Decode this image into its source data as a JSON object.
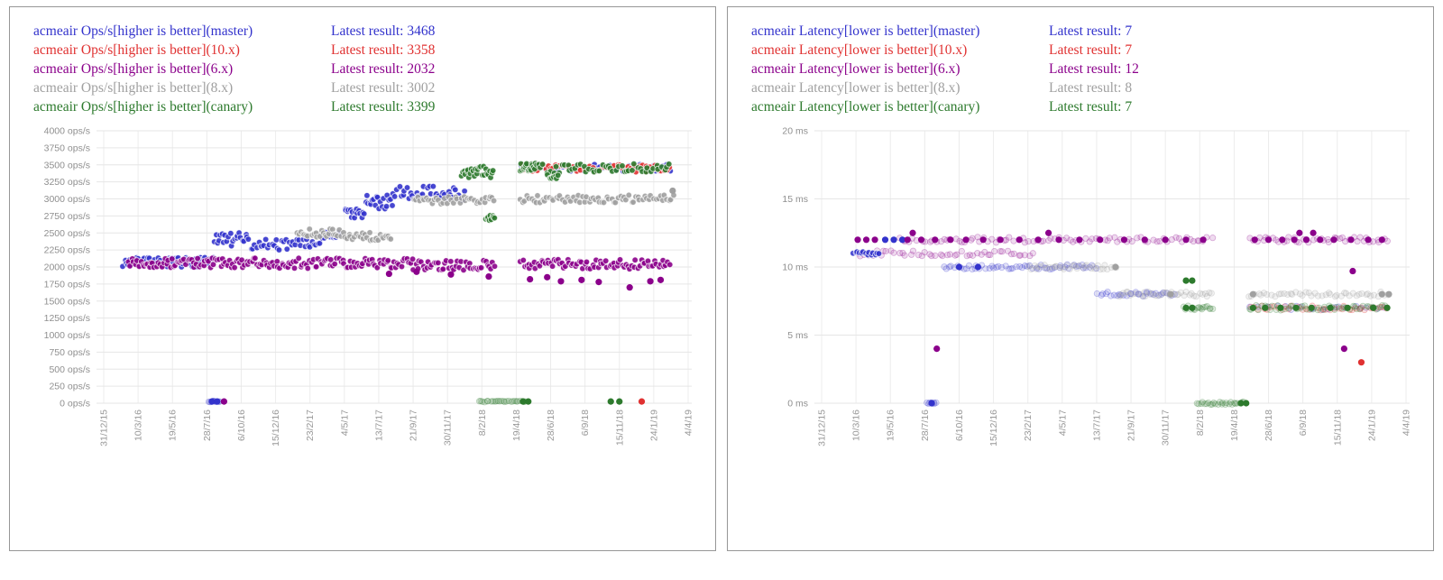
{
  "charts": [
    {
      "panel_name": "ops",
      "legend": [
        {
          "label": "acmeair Ops/s[higher is better](master)",
          "latest": "Latest result: 3468",
          "color": "#3333cc"
        },
        {
          "label": "acmeair Ops/s[higher is better](10.x)",
          "latest": "Latest result: 3358",
          "color": "#e03131"
        },
        {
          "label": "acmeair Ops/s[higher is better](6.x)",
          "latest": "Latest result: 2032",
          "color": "#8b008b"
        },
        {
          "label": "acmeair Ops/s[higher is better](8.x)",
          "latest": "Latest result: 3002",
          "color": "#a0a0a0"
        },
        {
          "label": "acmeair Ops/s[higher is better](canary)",
          "latest": "Latest result: 3399",
          "color": "#2d7a2d"
        }
      ],
      "chart_data": {
        "type": "scatter",
        "title": "acmeair Ops/s [higher is better]",
        "xlabel": "",
        "ylabel": "ops/s",
        "y_unit": " ops/s",
        "ylim": [
          0,
          4000
        ],
        "ytick_step": 250,
        "grid": true,
        "legend_position": "top-left",
        "x_tick_labels": [
          "31/12/15",
          "10/3/16",
          "19/5/16",
          "28/7/16",
          "6/10/16",
          "15/12/16",
          "23/2/17",
          "4/5/17",
          "13/7/17",
          "21/9/17",
          "30/11/17",
          "8/2/18",
          "19/4/18",
          "28/6/18",
          "6/9/18",
          "15/11/18",
          "24/1/19",
          "4/4/19"
        ],
        "x_unit": "tick index (70-day intervals between labeled dates)",
        "series": [
          {
            "name": "master",
            "color": "#3333cc",
            "latest": 3468,
            "segments": [
              [
                0.55,
                3.2,
                2070,
                70,
                60,
                "solid"
              ],
              [
                3.2,
                4.2,
                2400,
                110,
                22,
                "solid"
              ],
              [
                4.2,
                6.2,
                2330,
                80,
                36,
                "solid"
              ],
              [
                6.2,
                6.9,
                2430,
                90,
                14,
                "solid"
              ],
              [
                7.0,
                7.6,
                2790,
                70,
                16,
                "solid"
              ],
              [
                7.6,
                8.4,
                2960,
                110,
                20,
                "solid"
              ],
              [
                8.4,
                10.5,
                3090,
                110,
                38,
                "solid"
              ],
              [
                12.1,
                16.5,
                3460,
                55,
                46,
                "solid"
              ],
              [
                3.05,
                3.4,
                25,
                8,
                10,
                "pale"
              ]
            ],
            "points": [
              [
                3.15,
                25
              ],
              [
                3.3,
                25
              ]
            ]
          },
          {
            "name": "10.x",
            "color": "#e03131",
            "latest": 3358,
            "segments": [
              [
                12.1,
                16.5,
                3450,
                55,
                55,
                "solid"
              ]
            ],
            "points": [
              [
                15.65,
                25
              ]
            ]
          },
          {
            "name": "6.x",
            "color": "#8b008b",
            "latest": 2032,
            "segments": [
              [
                0.7,
                5.0,
                2060,
                70,
                85,
                "solid"
              ],
              [
                5.0,
                9.0,
                2055,
                75,
                75,
                "solid"
              ],
              [
                9.0,
                11.4,
                2030,
                75,
                45,
                "solid"
              ],
              [
                12.1,
                16.5,
                2040,
                70,
                80,
                "solid"
              ]
            ],
            "points": [
              [
                8.3,
                1900
              ],
              [
                9.1,
                1930
              ],
              [
                10.1,
                1890
              ],
              [
                11.2,
                1860
              ],
              [
                12.4,
                1820
              ],
              [
                12.9,
                1850
              ],
              [
                13.3,
                1790
              ],
              [
                13.9,
                1810
              ],
              [
                14.4,
                1780
              ],
              [
                15.3,
                1700
              ],
              [
                15.9,
                1790
              ],
              [
                16.2,
                1810
              ],
              [
                3.5,
                25
              ]
            ]
          },
          {
            "name": "8.x",
            "color": "#a0a0a0",
            "latest": 3002,
            "segments": [
              [
                5.6,
                7.0,
                2500,
                60,
                26,
                "solid"
              ],
              [
                7.0,
                8.4,
                2450,
                60,
                26,
                "solid"
              ],
              [
                9.0,
                11.4,
                2980,
                55,
                40,
                "solid"
              ],
              [
                12.1,
                16.6,
                3000,
                55,
                70,
                "solid"
              ]
            ],
            "points": [
              [
                16.55,
                3120
              ]
            ]
          },
          {
            "name": "canary",
            "color": "#2d7a2d",
            "latest": 3399,
            "segments": [
              [
                10.4,
                11.35,
                3390,
                90,
                26,
                "solid"
              ],
              [
                11.1,
                11.4,
                2720,
                40,
                9,
                "solid"
              ],
              [
                12.1,
                12.6,
                3480,
                70,
                18,
                "solid"
              ],
              [
                12.6,
                16.5,
                3445,
                70,
                50,
                "solid"
              ],
              [
                12.9,
                13.25,
                3310,
                50,
                8,
                "solid"
              ],
              [
                10.9,
                12.3,
                25,
                10,
                26,
                "pale"
              ]
            ],
            "points": [
              [
                12.2,
                25
              ],
              [
                12.35,
                25
              ],
              [
                14.75,
                25
              ],
              [
                15.0,
                25
              ]
            ]
          }
        ]
      }
    },
    {
      "panel_name": "latency",
      "legend": [
        {
          "label": "acmeair Latency[lower is better](master)",
          "latest": "Latest result: 7",
          "color": "#3333cc"
        },
        {
          "label": "acmeair Latency[lower is better](10.x)",
          "latest": "Latest result: 7",
          "color": "#e03131"
        },
        {
          "label": "acmeair Latency[lower is better](6.x)",
          "latest": "Latest result: 12",
          "color": "#8b008b"
        },
        {
          "label": "acmeair Latency[lower is better](8.x)",
          "latest": "Latest result: 8",
          "color": "#a0a0a0"
        },
        {
          "label": "acmeair Latency[lower is better](canary)",
          "latest": "Latest result: 7",
          "color": "#2d7a2d"
        }
      ],
      "chart_data": {
        "type": "scatter",
        "title": "acmeair Latency [lower is better]",
        "xlabel": "",
        "ylabel": "ms",
        "y_unit": " ms",
        "ylim": [
          0,
          20
        ],
        "ytick_step": 5,
        "grid": true,
        "legend_position": "top-left",
        "x_tick_labels": [
          "31/12/15",
          "10/3/16",
          "19/5/16",
          "28/7/16",
          "6/10/16",
          "15/12/16",
          "23/2/17",
          "4/5/17",
          "13/7/17",
          "21/9/17",
          "30/11/17",
          "8/2/18",
          "19/4/18",
          "28/6/18",
          "6/9/18",
          "15/11/18",
          "24/1/19",
          "4/4/19"
        ],
        "x_unit": "tick index (70-day intervals between labeled dates)",
        "series": [
          {
            "name": "master",
            "color": "#3333cc",
            "latest": 7,
            "segments": [
              [
                0.9,
                1.7,
                11,
                0.12,
                14,
                "solid"
              ],
              [
                3.5,
                8.0,
                10,
                0.18,
                55,
                "pale"
              ],
              [
                8.0,
                10.3,
                8,
                0.18,
                30,
                "pale"
              ],
              [
                12.4,
                16.5,
                7,
                0.15,
                22,
                "pale"
              ],
              [
                3.05,
                3.35,
                0,
                0.08,
                8,
                "pale"
              ]
            ],
            "points": [
              [
                1.85,
                12
              ],
              [
                2.1,
                12
              ],
              [
                2.35,
                12
              ],
              [
                4.0,
                10
              ],
              [
                4.55,
                10
              ],
              [
                3.2,
                0
              ]
            ]
          },
          {
            "name": "10.x",
            "color": "#e03131",
            "latest": 7,
            "segments": [
              [
                12.4,
                16.5,
                7,
                0.18,
                40,
                "pale"
              ]
            ],
            "points": [
              [
                15.7,
                3
              ]
            ]
          },
          {
            "name": "6.x",
            "color": "#8b008b",
            "latest": 12,
            "segments": [
              [
                2.2,
                11.4,
                12,
                0.2,
                85,
                "pale"
              ],
              [
                12.4,
                16.5,
                12,
                0.2,
                42,
                "pale"
              ],
              [
                1.0,
                6.2,
                11,
                0.2,
                48,
                "pale"
              ]
            ],
            "points": [
              [
                1.05,
                12
              ],
              [
                1.3,
                12
              ],
              [
                1.55,
                12
              ],
              [
                2.5,
                12
              ],
              [
                2.9,
                12
              ],
              [
                3.3,
                12
              ],
              [
                3.75,
                12
              ],
              [
                4.2,
                12
              ],
              [
                4.7,
                12
              ],
              [
                5.2,
                12
              ],
              [
                5.75,
                12
              ],
              [
                6.3,
                12
              ],
              [
                6.9,
                12
              ],
              [
                7.5,
                12
              ],
              [
                8.1,
                12
              ],
              [
                8.8,
                12
              ],
              [
                9.4,
                12
              ],
              [
                10.0,
                12
              ],
              [
                10.6,
                12
              ],
              [
                11.1,
                12
              ],
              [
                12.6,
                12
              ],
              [
                13.0,
                12
              ],
              [
                13.4,
                12
              ],
              [
                13.75,
                12
              ],
              [
                14.1,
                12
              ],
              [
                14.5,
                12
              ],
              [
                14.9,
                12
              ],
              [
                15.4,
                12
              ],
              [
                15.9,
                12
              ],
              [
                16.3,
                12
              ],
              [
                3.35,
                4
              ],
              [
                15.2,
                4
              ],
              [
                15.45,
                9.7
              ],
              [
                2.65,
                12.5
              ],
              [
                6.6,
                12.5
              ],
              [
                13.9,
                12.5
              ],
              [
                14.3,
                12.5
              ]
            ]
          },
          {
            "name": "8.x",
            "color": "#a0a0a0",
            "latest": 8,
            "segments": [
              [
                6.0,
                8.6,
                10,
                0.18,
                35,
                "pale"
              ],
              [
                8.6,
                11.4,
                8,
                0.18,
                38,
                "pale"
              ],
              [
                12.4,
                16.5,
                8,
                0.18,
                45,
                "pale"
              ]
            ],
            "points": [
              [
                8.55,
                10
              ],
              [
                10.15,
                8
              ],
              [
                12.55,
                8
              ],
              [
                16.3,
                8
              ],
              [
                16.5,
                8
              ]
            ]
          },
          {
            "name": "canary",
            "color": "#2d7a2d",
            "latest": 7,
            "segments": [
              [
                10.5,
                11.4,
                7,
                0.15,
                18,
                "pale"
              ],
              [
                12.4,
                16.5,
                7,
                0.18,
                48,
                "pale"
              ],
              [
                10.9,
                12.3,
                0,
                0.1,
                26,
                "pale"
              ]
            ],
            "points": [
              [
                10.6,
                7
              ],
              [
                10.78,
                7
              ],
              [
                12.55,
                7
              ],
              [
                12.9,
                7
              ],
              [
                13.35,
                7
              ],
              [
                13.8,
                7
              ],
              [
                14.25,
                7
              ],
              [
                14.8,
                7
              ],
              [
                15.3,
                7
              ],
              [
                16.05,
                7
              ],
              [
                16.45,
                7
              ],
              [
                10.6,
                9
              ],
              [
                10.78,
                9
              ],
              [
                12.2,
                0
              ],
              [
                12.35,
                0
              ]
            ]
          }
        ]
      }
    }
  ]
}
